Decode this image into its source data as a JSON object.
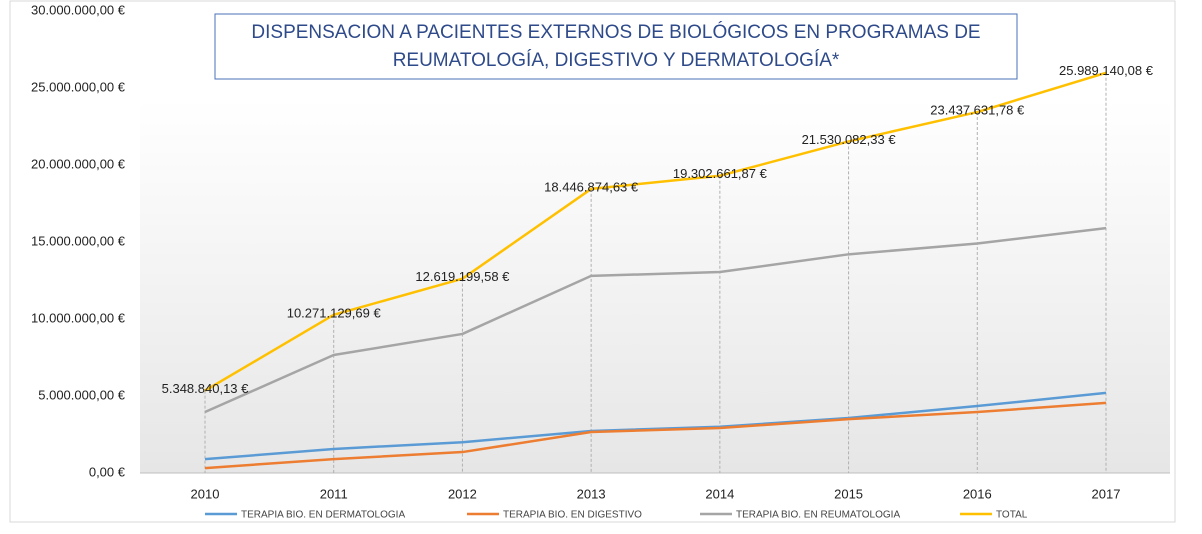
{
  "chart_data": {
    "type": "line",
    "title": [
      "DISPENSACION A PACIENTES EXTERNOS DE BIOLÓGICOS EN PROGRAMAS DE",
      "REUMATOLOGÍA, DIGESTIVO Y DERMATOLOGÍA*"
    ],
    "categories": [
      "2010",
      "2011",
      "2012",
      "2013",
      "2014",
      "2015",
      "2016",
      "2017"
    ],
    "series": [
      {
        "name": "TERAPIA BIO. EN DERMATOLOGIA",
        "color": "#5b9bd5",
        "values": [
          900000,
          1560000,
          2000000,
          2730000,
          3000000,
          3570000,
          4350000,
          5200000
        ]
      },
      {
        "name": "TERAPIA BIO. EN DIGESTIVO",
        "color": "#ed7d31",
        "values": [
          320000,
          900000,
          1360000,
          2660000,
          2920000,
          3500000,
          3960000,
          4550000
        ]
      },
      {
        "name": "TERAPIA BIO. EN REUMATOLOGIA",
        "color": "#a5a5a5",
        "values": [
          3960000,
          7660000,
          9030000,
          12800000,
          13050000,
          14200000,
          14900000,
          15900000
        ]
      },
      {
        "name": "TOTAL",
        "color": "#ffc000",
        "values": [
          5348840.13,
          10271129.69,
          12619199.58,
          18446874.63,
          19302661.87,
          21530082.33,
          23437631.78,
          25989140.08
        ],
        "value_labels": [
          "5.348.840,13 €",
          "10.271.129,69 €",
          "12.619.199,58 €",
          "18.446.874,63 €",
          "19.302.661,87 €",
          "21.530.082,33 €",
          "23.437.631,78 €",
          "25.989.140,08 €"
        ]
      }
    ],
    "ylim": [
      0,
      30000000
    ],
    "yticks": [
      {
        "value": 0,
        "label": "0,00 €"
      },
      {
        "value": 5000000,
        "label": "5.000.000,00 €"
      },
      {
        "value": 10000000,
        "label": "10.000.000,00 €"
      },
      {
        "value": 15000000,
        "label": "15.000.000,00 €"
      },
      {
        "value": 20000000,
        "label": "20.000.000,00 €"
      },
      {
        "value": 25000000,
        "label": "25.000.000,00 €"
      },
      {
        "value": 30000000,
        "label": "30.000.000,00 €"
      }
    ],
    "legend": "bottom"
  }
}
